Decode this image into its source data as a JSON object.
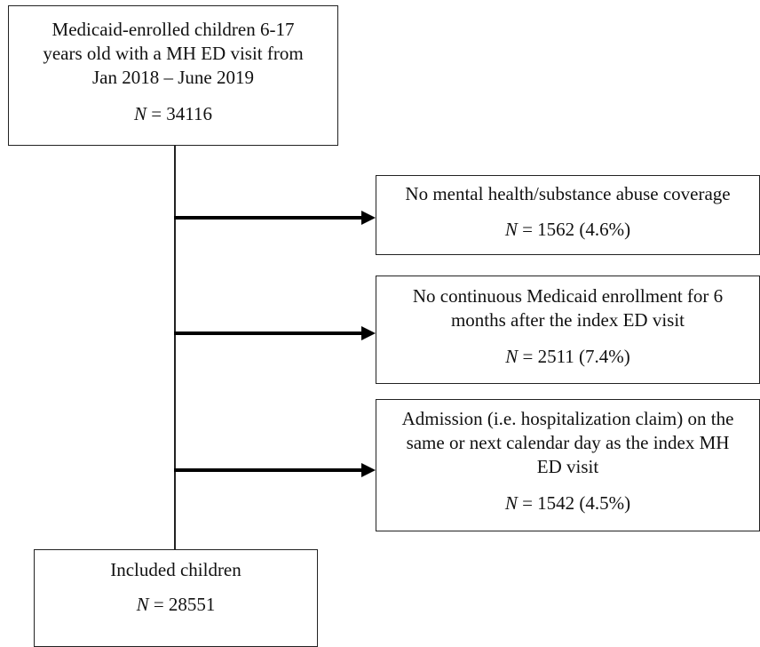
{
  "flowchart": {
    "start": {
      "lines": [
        "Medicaid-enrolled children 6-17",
        "years old with a MH ED visit from",
        "Jan 2018 – June 2019"
      ],
      "n_label": "N",
      "n_value": " = 34116"
    },
    "exclusions": [
      {
        "lines": [
          "No mental health/substance abuse coverage"
        ],
        "n_label": "N",
        "n_value": " = 1562 (4.6%)"
      },
      {
        "lines": [
          "No continuous Medicaid enrollment for 6",
          "months after the index ED visit"
        ],
        "n_label": "N",
        "n_value": " = 2511 (7.4%)"
      },
      {
        "lines": [
          "Admission (i.e. hospitalization claim) on the",
          "same or next calendar day as the index MH",
          "ED visit"
        ],
        "n_label": "N",
        "n_value": " = 1542 (4.5%)"
      }
    ],
    "result": {
      "lines": [
        "Included children"
      ],
      "n_label": "N",
      "n_value": " = 28551"
    }
  }
}
